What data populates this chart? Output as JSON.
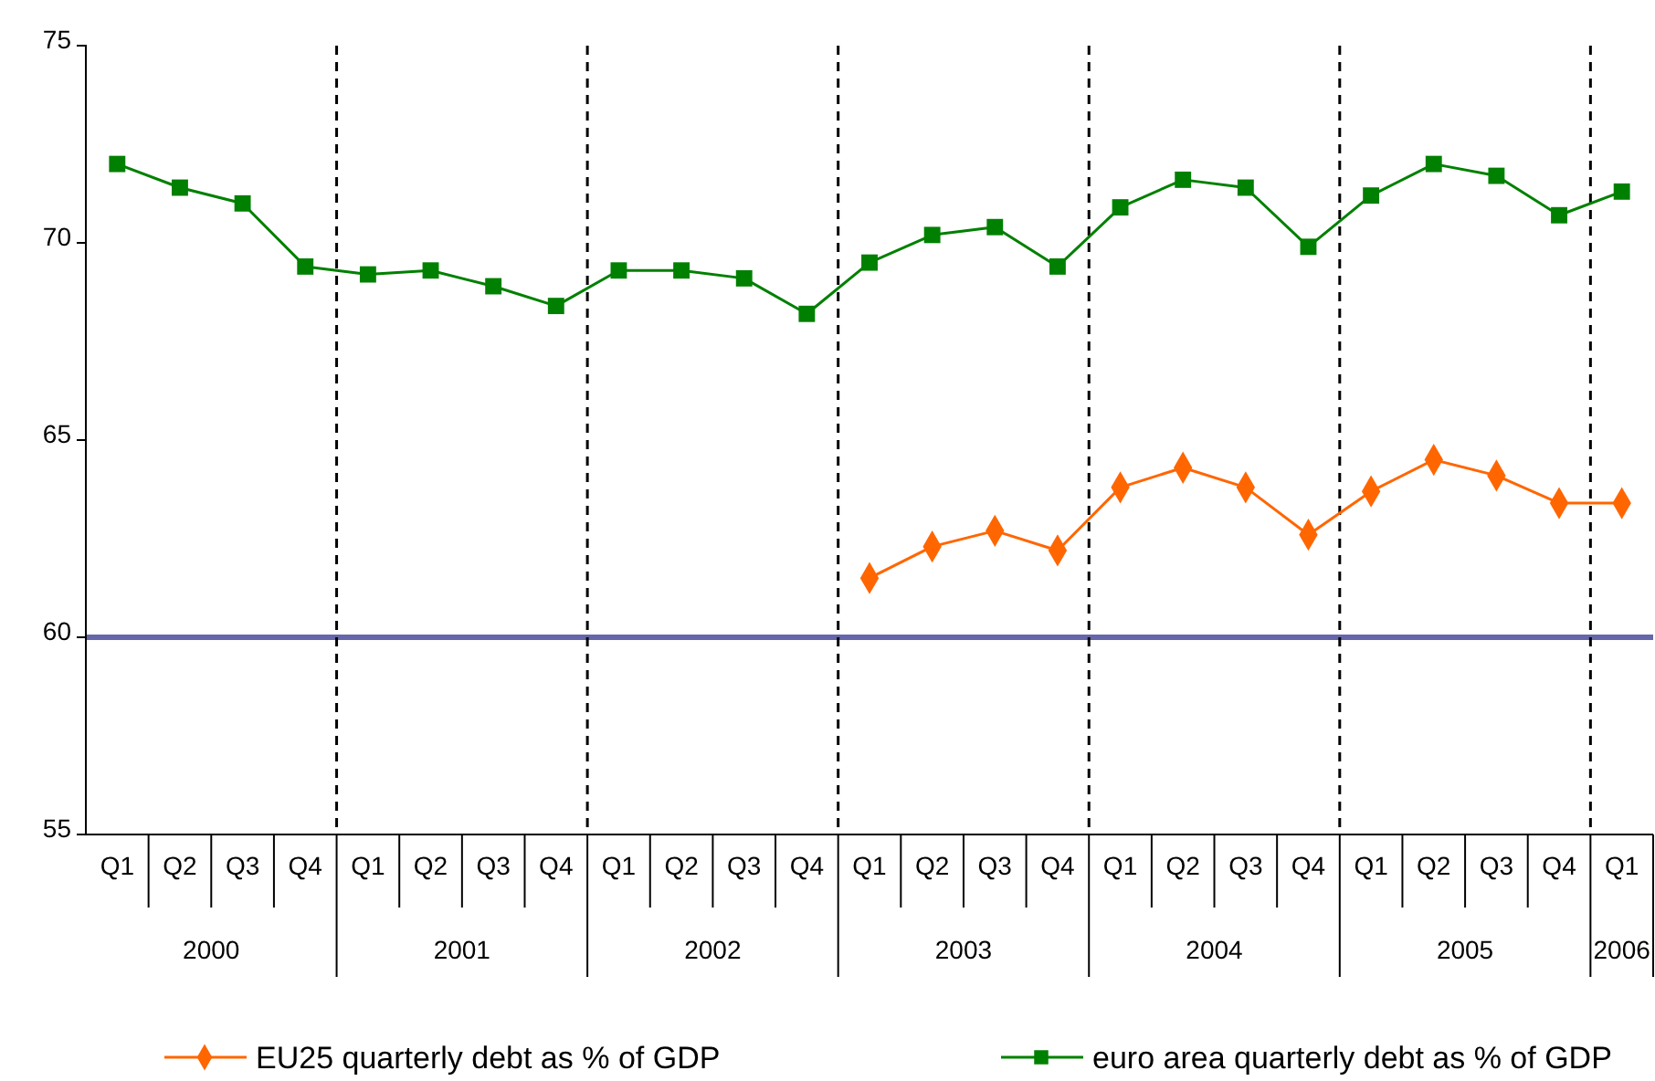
{
  "chart_data": {
    "type": "line",
    "categories": [
      "Q1",
      "Q2",
      "Q3",
      "Q4",
      "Q1",
      "Q2",
      "Q3",
      "Q4",
      "Q1",
      "Q2",
      "Q3",
      "Q4",
      "Q1",
      "Q2",
      "Q3",
      "Q4",
      "Q1",
      "Q2",
      "Q3",
      "Q4",
      "Q1",
      "Q2",
      "Q3",
      "Q4",
      "Q1"
    ],
    "series": [
      {
        "name": "EU25 quarterly debt as % of GDP",
        "color": "#ff6600",
        "marker": "diamond",
        "values": [
          null,
          null,
          null,
          null,
          null,
          null,
          null,
          null,
          null,
          null,
          null,
          null,
          61.5,
          62.3,
          62.7,
          62.2,
          63.8,
          64.3,
          63.8,
          62.6,
          63.7,
          64.5,
          64.1,
          63.4,
          63.4
        ]
      },
      {
        "name": "euro area quarterly debt as % of GDP",
        "color": "#008000",
        "marker": "square",
        "values": [
          72.0,
          71.4,
          71.0,
          69.4,
          69.2,
          69.3,
          68.9,
          68.4,
          69.3,
          69.3,
          69.1,
          68.2,
          69.5,
          70.2,
          70.4,
          69.4,
          70.9,
          71.6,
          71.4,
          69.9,
          71.2,
          72.0,
          71.7,
          70.7,
          71.3
        ]
      }
    ],
    "ylim": [
      55,
      75
    ],
    "yticks": [
      55,
      60,
      65,
      70,
      75
    ],
    "annotations": [
      "2000",
      "2001",
      "2002",
      "2003",
      "2004",
      "2005",
      "2006"
    ],
    "ref_lines": [
      {
        "axis": "y",
        "value": 60,
        "color": "#6666aa",
        "line_style": "solid"
      }
    ],
    "legend": "bottom",
    "grid": false,
    "line_style": "solid"
  }
}
